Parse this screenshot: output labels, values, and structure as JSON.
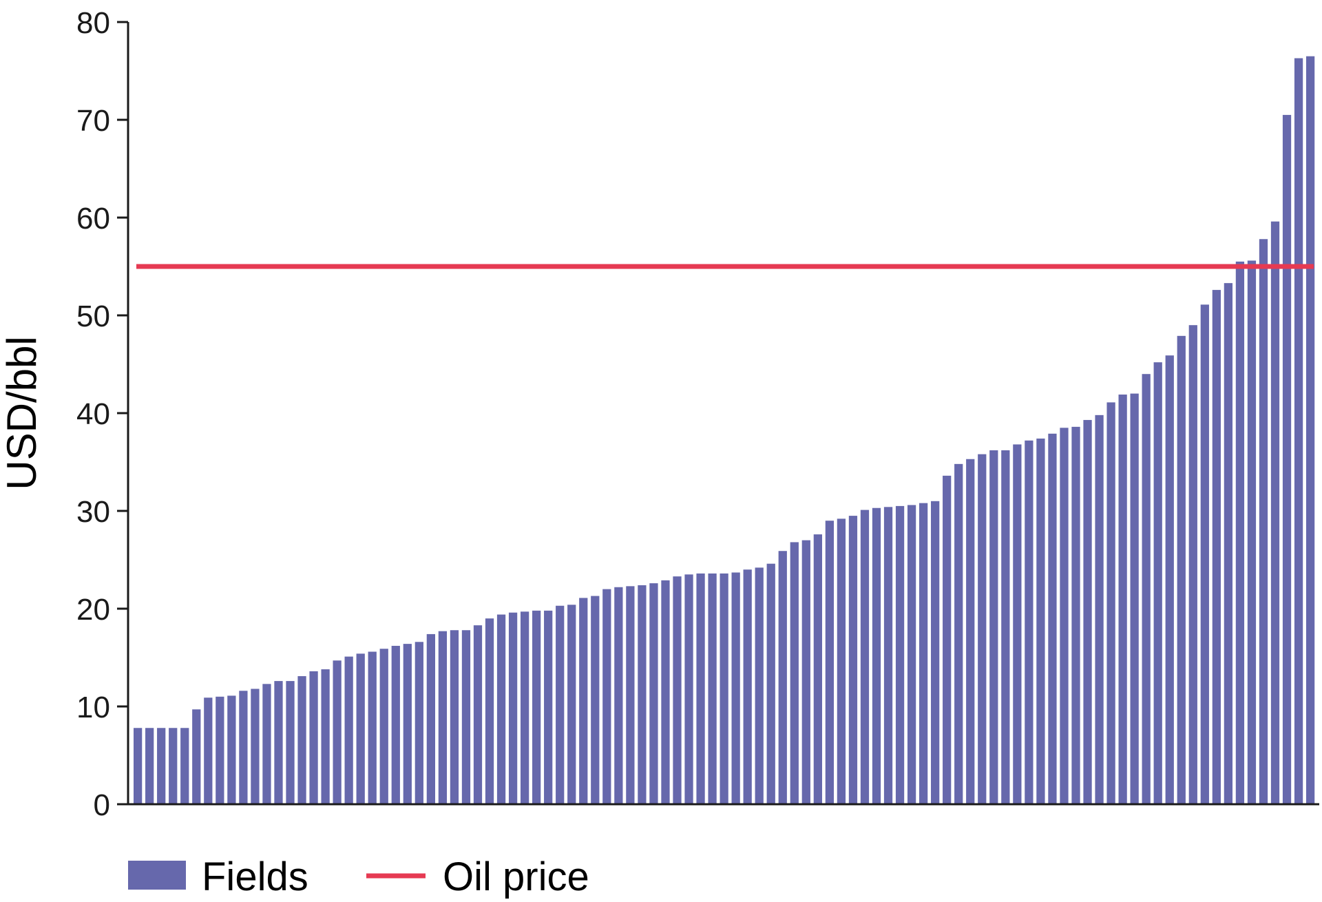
{
  "chart_data": {
    "type": "bar",
    "ylabel": "USD/bbl",
    "ylim": [
      0,
      80
    ],
    "yticks": [
      0,
      10,
      20,
      30,
      40,
      50,
      60,
      70,
      80
    ],
    "grid": false,
    "legend_position": "bottom-left",
    "colors": {
      "bars": "#6668ac",
      "oil_price": "#e63a52",
      "axis": "#1a1a1a"
    },
    "series": [
      {
        "name": "Fields",
        "values": [
          7.8,
          7.8,
          7.8,
          7.8,
          7.8,
          9.7,
          10.9,
          11.0,
          11.1,
          11.6,
          11.8,
          12.3,
          12.6,
          12.6,
          13.1,
          13.6,
          13.8,
          14.7,
          15.1,
          15.4,
          15.6,
          15.9,
          16.2,
          16.4,
          16.6,
          17.4,
          17.7,
          17.8,
          17.8,
          18.3,
          19.0,
          19.4,
          19.6,
          19.7,
          19.8,
          19.8,
          20.3,
          20.4,
          21.1,
          21.3,
          22.0,
          22.2,
          22.3,
          22.4,
          22.6,
          22.9,
          23.3,
          23.5,
          23.6,
          23.6,
          23.6,
          23.7,
          24.0,
          24.2,
          24.6,
          25.9,
          26.8,
          27.0,
          27.6,
          29.0,
          29.2,
          29.5,
          30.1,
          30.3,
          30.4,
          30.5,
          30.6,
          30.8,
          31.0,
          33.6,
          34.8,
          35.3,
          35.8,
          36.2,
          36.2,
          36.8,
          37.2,
          37.4,
          37.9,
          38.5,
          38.6,
          39.3,
          39.8,
          41.1,
          41.9,
          42.0,
          44.0,
          45.2,
          45.9,
          47.9,
          49.0,
          51.1,
          52.6,
          53.3,
          55.5,
          55.6,
          57.8,
          59.6,
          70.5,
          76.3,
          76.5
        ]
      },
      {
        "name": "Oil price",
        "type": "line",
        "value": 55
      }
    ]
  }
}
